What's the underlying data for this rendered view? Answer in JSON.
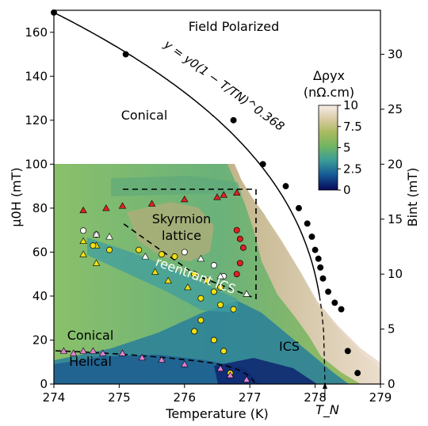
{
  "chart_data": {
    "type": "scatter",
    "xlabel": "Temperature (K)",
    "ylabel_left": "μ0H (mT)",
    "ylabel_right": "Bint (mT)",
    "xlim": [
      274,
      279
    ],
    "ylim_left": [
      0,
      170
    ],
    "ylim_right": [
      0,
      34
    ],
    "xticks": [
      274,
      275,
      276,
      277,
      278,
      279
    ],
    "yticks_left": [
      0,
      20,
      40,
      60,
      80,
      100,
      120,
      140,
      160
    ],
    "yticks_right": [
      0,
      5,
      10,
      15,
      20,
      25,
      30
    ],
    "tn_label": "T_N",
    "tn_value": 278.15,
    "fit_equation": "y = y0(1 − T/TN)^0.368",
    "fit_exponent": 0.368,
    "regions": {
      "field_polarized": "Field Polarized",
      "conical_top": "Conical",
      "skyrmion_line1": "Skyrmion",
      "skyrmion_line2": "lattice",
      "reentrant": "reentrant ICS",
      "conical_bottom": "Conical",
      "helical": "Helical",
      "ics": "ICS"
    },
    "colorbar": {
      "title_line1": "Δρyx",
      "title_line2": "(nΩ.cm)",
      "range": [
        0,
        10
      ],
      "ticks": [
        "0",
        "2.5",
        "5",
        "7.5",
        "10"
      ],
      "colors": [
        "#08085a",
        "#155a95",
        "#3a9c98",
        "#72b562",
        "#a8ba5e",
        "#dccdaa",
        "#f7eee9"
      ]
    },
    "series": [
      {
        "marker": "circle",
        "color": "#000000",
        "x": [
          274.0,
          275.1,
          276.75,
          277.2,
          277.55,
          277.75,
          277.88,
          277.95,
          278.0,
          278.05,
          278.08,
          278.12,
          278.2,
          278.3,
          278.4,
          278.5,
          278.65
        ],
        "y": [
          169,
          150,
          120,
          100,
          90,
          80,
          73,
          67,
          61,
          57,
          53,
          48,
          42,
          37,
          34,
          15,
          5
        ]
      },
      {
        "marker": "triangle",
        "color": "#e02020",
        "x": [
          274.45,
          274.8,
          275.05,
          275.5,
          276.0,
          276.5,
          276.6,
          276.8
        ],
        "y": [
          79,
          80,
          81,
          82,
          84,
          85,
          86,
          87
        ]
      },
      {
        "marker": "circle",
        "color": "#e02020",
        "x": [
          276.8,
          276.85,
          276.9,
          276.85,
          276.8
        ],
        "y": [
          70,
          66,
          62,
          55,
          50
        ]
      },
      {
        "marker": "circle",
        "color": "#ffffff",
        "x": [
          274.45,
          274.65,
          276.0,
          276.45,
          276.6
        ],
        "y": [
          69.8,
          68,
          60,
          54,
          49
        ]
      },
      {
        "marker": "triangle",
        "color": "#ffffff",
        "x": [
          274.65,
          274.85,
          275.4,
          276.25,
          276.55,
          276.95
        ],
        "y": [
          68,
          67,
          58,
          57,
          49,
          41
        ]
      },
      {
        "marker": "triangle",
        "color": "#f0e010",
        "x": [
          274.45,
          274.65,
          274.45,
          274.65,
          275.55,
          275.75,
          276.05
        ],
        "y": [
          65,
          63,
          59,
          55,
          51,
          47,
          44
        ]
      },
      {
        "marker": "circle",
        "color": "#f0e010",
        "x": [
          274.6,
          274.85,
          275.3,
          275.65,
          275.85,
          276.15,
          276.35,
          276.55,
          276.45,
          276.25,
          276.55,
          276.75
        ],
        "y": [
          63,
          61,
          61,
          59,
          58,
          50,
          47,
          44,
          42,
          39,
          36,
          34
        ]
      },
      {
        "marker": "circle",
        "color": "#f0e010",
        "x": [
          276.25,
          276.15,
          276.45,
          276.6,
          276.7
        ],
        "y": [
          29,
          24,
          20,
          15,
          5
        ]
      },
      {
        "marker": "triangle",
        "color": "#e080d0",
        "x": [
          274.15,
          274.3,
          274.45,
          274.6,
          274.75,
          275.05,
          275.35,
          275.65,
          276.0,
          276.55,
          276.7,
          276.95
        ],
        "y": [
          15,
          14,
          15,
          15,
          14,
          14,
          12,
          11,
          9,
          7,
          4,
          2
        ]
      }
    ]
  }
}
